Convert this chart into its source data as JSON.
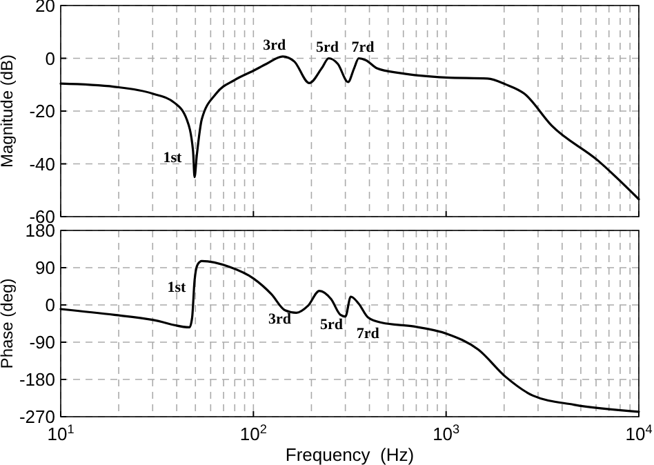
{
  "chart_data": [
    {
      "type": "line",
      "ylabel": "Magnitude (dB)",
      "log": "x",
      "grid": true,
      "tick_labels": "y",
      "xlim": [
        10,
        10000
      ],
      "ylim": [
        -60,
        20
      ],
      "yticks": [
        -60,
        -40,
        -20,
        0,
        20
      ],
      "xticks": [
        {
          "value": 10,
          "label": null
        },
        {
          "value": 100,
          "label": null
        },
        {
          "value": 1000,
          "label": null
        },
        {
          "value": 10000,
          "label": null
        }
      ],
      "series": [
        {
          "color": "#000000",
          "x": [
            10,
            19,
            30,
            39,
            45,
            48.6,
            49.5,
            50.8,
            54,
            64,
            80,
            100,
            117,
            142,
            163,
            195,
            226,
            246,
            274,
            310,
            333,
            352,
            383,
            438,
            576,
            1000,
            1640,
            2040,
            2547,
            3540,
            6100,
            10000
          ],
          "values": [
            -9.6,
            -10.8,
            -13.4,
            -16.9,
            -23,
            -35,
            -45,
            -37,
            -23,
            -13.4,
            -8.2,
            -4.7,
            -2.1,
            0.7,
            -1.2,
            -9.4,
            -3.8,
            0,
            -2.1,
            -9,
            -3.8,
            0,
            -0.7,
            -3.8,
            -5.6,
            -7.3,
            -7.7,
            -9.9,
            -13.4,
            -25.6,
            -38.6,
            -53.4
          ]
        }
      ],
      "annotations": [
        {
          "text": "1st",
          "x": 49.5,
          "y": -45
        },
        {
          "text": "3rd",
          "x": 142,
          "y": 0.7
        },
        {
          "text": "5rd",
          "x": 246,
          "y": 0
        },
        {
          "text": "7rd",
          "x": 352,
          "y": 0
        }
      ]
    },
    {
      "type": "line",
      "ylabel": "Phase (deg)",
      "xlabel": "Frequency  (Hz)",
      "log": "x",
      "grid": true,
      "xlim": [
        10,
        10000
      ],
      "ylim": [
        -270,
        180
      ],
      "yticks": [
        -270,
        -180,
        -90,
        0,
        90,
        180
      ],
      "xticks": [
        {
          "value": 10,
          "label": "10$^{1}$"
        },
        {
          "value": 100,
          "label": "10$^{2}$"
        },
        {
          "value": 1000,
          "label": "10$^{3}$"
        },
        {
          "value": 10000,
          "label": "10$^{4}$"
        }
      ],
      "series": [
        {
          "color": "#000000",
          "x": [
            10,
            19,
            30,
            46.6,
            48.1,
            49.5,
            51.4,
            54,
            75,
            100,
            124,
            146,
            167,
            192,
            220,
            253,
            283,
            300,
            320,
            352,
            393,
            464,
            680,
            1000,
            1470,
            2040,
            2820,
            4600,
            10000
          ],
          "values": [
            -10,
            -24,
            -36,
            -54,
            -30,
            59,
            98,
            106,
            92,
            64,
            26,
            -13,
            -19,
            -2,
            34,
            14,
            -24,
            -28,
            20,
            3,
            -30,
            -43,
            -52,
            -69,
            -108,
            -174,
            -219,
            -241,
            -258
          ]
        }
      ],
      "annotations": [
        {
          "text": "1st",
          "x": 49.5,
          "y": 59
        },
        {
          "text": "3rd",
          "x": 167,
          "y": -19
        },
        {
          "text": "5rd",
          "x": 300,
          "y": -28
        },
        {
          "text": "7rd",
          "x": 393,
          "y": -30
        }
      ]
    }
  ]
}
